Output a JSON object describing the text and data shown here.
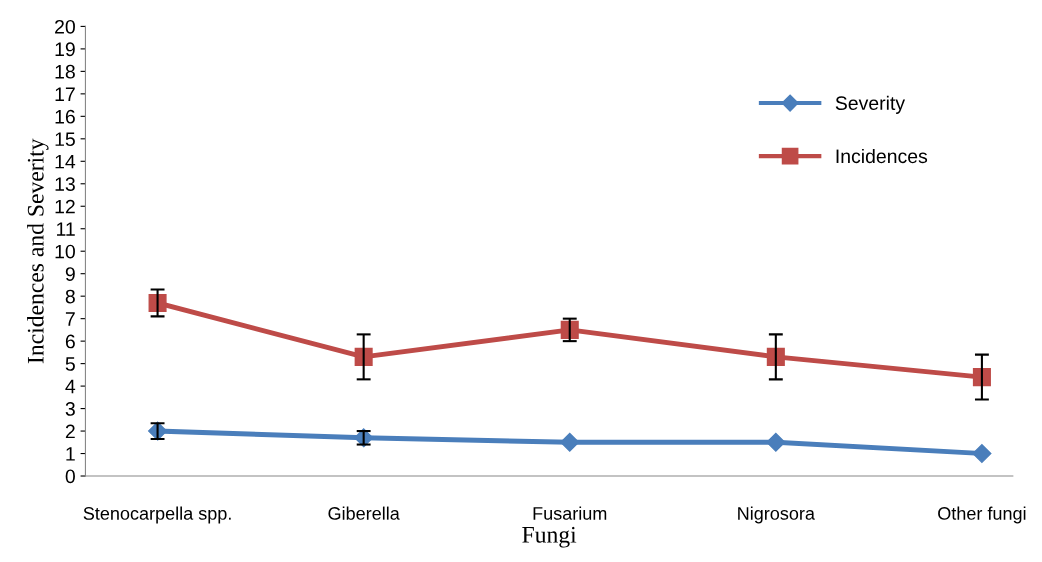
{
  "chart_data": {
    "type": "line",
    "xlabel": "Fungi",
    "ylabel": "Incidences and Severity",
    "categories": [
      "Stenocarpella spp.",
      "Giberella",
      "Fusarium",
      "Nigrosora",
      "Other fungi"
    ],
    "series": [
      {
        "name": "Severity",
        "color": "#4a7ebb",
        "marker": "diamond",
        "values": [
          2.0,
          1.7,
          1.5,
          1.5,
          1.0
        ],
        "errors": [
          0.35,
          0.3,
          null,
          null,
          null
        ]
      },
      {
        "name": "Incidences",
        "color": "#be4b48",
        "marker": "square",
        "values": [
          7.7,
          5.3,
          6.5,
          5.3,
          4.4
        ],
        "errors": [
          0.6,
          1.0,
          0.5,
          1.0,
          1.0
        ]
      }
    ],
    "ylim": [
      0,
      20
    ],
    "yticks": [
      0,
      1,
      2,
      3,
      4,
      5,
      6,
      7,
      8,
      9,
      10,
      11,
      12,
      13,
      14,
      15,
      16,
      17,
      18,
      19,
      20
    ],
    "grid": false,
    "legend": "top right",
    "line_style": "solid"
  }
}
